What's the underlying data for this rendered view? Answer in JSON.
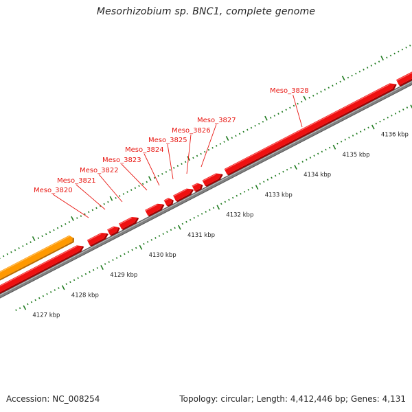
{
  "title": "Mesorhizobium sp. BNC1, complete genome",
  "footer": {
    "accession": "Accession: NC_008254",
    "summary": "Topology: circular; Length: 4,412,446 bp; Genes: 4,131"
  },
  "colors": {
    "gene_forward": "#ee1111",
    "gene_reverse_other": "#ff9900",
    "backbone": "#808080",
    "tick": "#1e7a1e",
    "label": "#e8140f"
  },
  "genes": [
    {
      "label": "Meso_3820"
    },
    {
      "label": "Meso_3821"
    },
    {
      "label": "Meso_3822"
    },
    {
      "label": "Meso_3823"
    },
    {
      "label": "Meso_3824"
    },
    {
      "label": "Meso_3825"
    },
    {
      "label": "Meso_3826"
    },
    {
      "label": "Meso_3827"
    },
    {
      "label": "Meso_3828"
    }
  ],
  "kbp_labels": [
    "4127 kbp",
    "4128 kbp",
    "4129 kbp",
    "4130 kbp",
    "4131 kbp",
    "4132 kbp",
    "4133 kbp",
    "4134 kbp",
    "4135 kbp",
    "4136 kbp"
  ]
}
